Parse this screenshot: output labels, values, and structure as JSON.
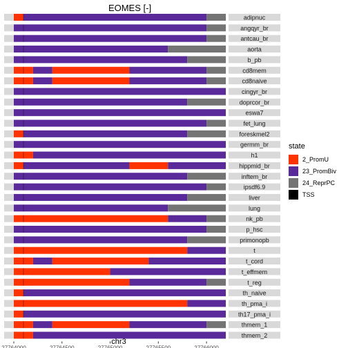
{
  "chart_data": {
    "type": "bar",
    "title": "EOMES [-]",
    "xlabel": "chr3",
    "ylabel": "",
    "xlim": [
      27764000,
      27766200
    ],
    "x_ticks": [
      27764000,
      27764500,
      27765000,
      27765500,
      27766000
    ],
    "x_tick_labels": [
      "27764000",
      "27764500",
      "27765000",
      "27765500",
      "27766000"
    ],
    "tss": 27764100,
    "legend_title": "state",
    "legend_position": "right",
    "states": [
      {
        "name": "2_PromU",
        "color": "#FF3300"
      },
      {
        "name": "23_PromBiv",
        "color": "#5A2A9A"
      },
      {
        "name": "24_ReprPC",
        "color": "#747474"
      },
      {
        "name": "TSS",
        "color": "#000000"
      }
    ],
    "tracks": [
      {
        "label": "adipnuc",
        "segments": [
          [
            27764000,
            27764100,
            "2_PromU"
          ],
          [
            27764100,
            27766000,
            "23_PromBiv"
          ],
          [
            27766000,
            27766200,
            "24_ReprPC"
          ]
        ]
      },
      {
        "label": "angqyr_br",
        "segments": [
          [
            27764000,
            27766000,
            "23_PromBiv"
          ],
          [
            27766000,
            27766200,
            "24_ReprPC"
          ]
        ]
      },
      {
        "label": "antcau_br",
        "segments": [
          [
            27764000,
            27766000,
            "23_PromBiv"
          ],
          [
            27766000,
            27766200,
            "24_ReprPC"
          ]
        ]
      },
      {
        "label": "aorta",
        "segments": [
          [
            27764000,
            27765600,
            "23_PromBiv"
          ],
          [
            27765600,
            27766200,
            "24_ReprPC"
          ]
        ]
      },
      {
        "label": "b_pb",
        "segments": [
          [
            27764000,
            27765800,
            "23_PromBiv"
          ],
          [
            27765800,
            27766200,
            "24_ReprPC"
          ]
        ]
      },
      {
        "label": "cd8mem",
        "segments": [
          [
            27764000,
            27764200,
            "2_PromU"
          ],
          [
            27764200,
            27764400,
            "23_PromBiv"
          ],
          [
            27764400,
            27765200,
            "2_PromU"
          ],
          [
            27765200,
            27766000,
            "23_PromBiv"
          ],
          [
            27766000,
            27766200,
            "24_ReprPC"
          ]
        ]
      },
      {
        "label": "cd8naive",
        "segments": [
          [
            27764000,
            27764200,
            "2_PromU"
          ],
          [
            27764200,
            27764400,
            "23_PromBiv"
          ],
          [
            27764400,
            27765200,
            "2_PromU"
          ],
          [
            27765200,
            27766000,
            "23_PromBiv"
          ],
          [
            27766000,
            27766200,
            "24_ReprPC"
          ]
        ]
      },
      {
        "label": "cingyr_br",
        "segments": [
          [
            27764000,
            27766200,
            "23_PromBiv"
          ]
        ]
      },
      {
        "label": "doprcor_br",
        "segments": [
          [
            27764000,
            27765800,
            "23_PromBiv"
          ],
          [
            27765800,
            27766200,
            "24_ReprPC"
          ]
        ]
      },
      {
        "label": "eswa7",
        "segments": [
          [
            27764000,
            27766200,
            "23_PromBiv"
          ]
        ]
      },
      {
        "label": "fet_lung",
        "segments": [
          [
            27764000,
            27766000,
            "23_PromBiv"
          ],
          [
            27766000,
            27766200,
            "24_ReprPC"
          ]
        ]
      },
      {
        "label": "foreskmel2",
        "segments": [
          [
            27764000,
            27764100,
            "2_PromU"
          ],
          [
            27764100,
            27765800,
            "23_PromBiv"
          ],
          [
            27765800,
            27766200,
            "24_ReprPC"
          ]
        ]
      },
      {
        "label": "germm_br",
        "segments": [
          [
            27764000,
            27766200,
            "23_PromBiv"
          ]
        ]
      },
      {
        "label": "h1",
        "segments": [
          [
            27764000,
            27764200,
            "2_PromU"
          ],
          [
            27764200,
            27766200,
            "23_PromBiv"
          ]
        ]
      },
      {
        "label": "hippmid_br",
        "segments": [
          [
            27764000,
            27764100,
            "2_PromU"
          ],
          [
            27764100,
            27765200,
            "23_PromBiv"
          ],
          [
            27765200,
            27765600,
            "2_PromU"
          ],
          [
            27765600,
            27766200,
            "23_PromBiv"
          ]
        ]
      },
      {
        "label": "inftem_br",
        "segments": [
          [
            27764000,
            27765800,
            "23_PromBiv"
          ],
          [
            27765800,
            27766200,
            "24_ReprPC"
          ]
        ]
      },
      {
        "label": "ipsdf6.9",
        "segments": [
          [
            27764000,
            27766000,
            "23_PromBiv"
          ],
          [
            27766000,
            27766200,
            "24_ReprPC"
          ]
        ]
      },
      {
        "label": "liver",
        "segments": [
          [
            27764000,
            27765800,
            "23_PromBiv"
          ],
          [
            27765800,
            27766200,
            "24_ReprPC"
          ]
        ]
      },
      {
        "label": "lung",
        "segments": [
          [
            27764000,
            27765600,
            "23_PromBiv"
          ],
          [
            27765600,
            27766200,
            "24_ReprPC"
          ]
        ]
      },
      {
        "label": "nk_pb",
        "segments": [
          [
            27764000,
            27765600,
            "2_PromU"
          ],
          [
            27765600,
            27766000,
            "23_PromBiv"
          ],
          [
            27766000,
            27766200,
            "24_ReprPC"
          ]
        ]
      },
      {
        "label": "p_hsc",
        "segments": [
          [
            27764000,
            27766000,
            "23_PromBiv"
          ],
          [
            27766000,
            27766200,
            "24_ReprPC"
          ]
        ]
      },
      {
        "label": "primonopb",
        "segments": [
          [
            27764000,
            27765800,
            "23_PromBiv"
          ],
          [
            27765800,
            27766200,
            "24_ReprPC"
          ]
        ]
      },
      {
        "label": "t",
        "segments": [
          [
            27764000,
            27765800,
            "2_PromU"
          ],
          [
            27765800,
            27766200,
            "23_PromBiv"
          ]
        ]
      },
      {
        "label": "t_cord",
        "segments": [
          [
            27764000,
            27764200,
            "2_PromU"
          ],
          [
            27764200,
            27764400,
            "23_PromBiv"
          ],
          [
            27764400,
            27765400,
            "2_PromU"
          ],
          [
            27765400,
            27766200,
            "23_PromBiv"
          ]
        ]
      },
      {
        "label": "t_effmem",
        "segments": [
          [
            27764000,
            27765000,
            "2_PromU"
          ],
          [
            27765000,
            27766200,
            "23_PromBiv"
          ]
        ]
      },
      {
        "label": "t_reg",
        "segments": [
          [
            27764000,
            27765200,
            "2_PromU"
          ],
          [
            27765200,
            27766000,
            "23_PromBiv"
          ],
          [
            27766000,
            27766200,
            "24_ReprPC"
          ]
        ]
      },
      {
        "label": "th_naive",
        "segments": [
          [
            27764000,
            27764100,
            "2_PromU"
          ],
          [
            27764100,
            27766200,
            "23_PromBiv"
          ]
        ]
      },
      {
        "label": "th_pma_i",
        "segments": [
          [
            27764000,
            27765800,
            "2_PromU"
          ],
          [
            27765800,
            27766200,
            "23_PromBiv"
          ]
        ]
      },
      {
        "label": "th17_pma_i",
        "segments": [
          [
            27764000,
            27764100,
            "2_PromU"
          ],
          [
            27764100,
            27766200,
            "23_PromBiv"
          ]
        ]
      },
      {
        "label": "thmem_1",
        "segments": [
          [
            27764000,
            27764200,
            "2_PromU"
          ],
          [
            27764200,
            27764400,
            "23_PromBiv"
          ],
          [
            27764400,
            27765200,
            "2_PromU"
          ],
          [
            27765200,
            27766000,
            "23_PromBiv"
          ],
          [
            27766000,
            27766200,
            "24_ReprPC"
          ]
        ]
      },
      {
        "label": "thmem_2",
        "segments": [
          [
            27764000,
            27764200,
            "2_PromU"
          ],
          [
            27764200,
            27766200,
            "23_PromBiv"
          ]
        ]
      }
    ]
  }
}
